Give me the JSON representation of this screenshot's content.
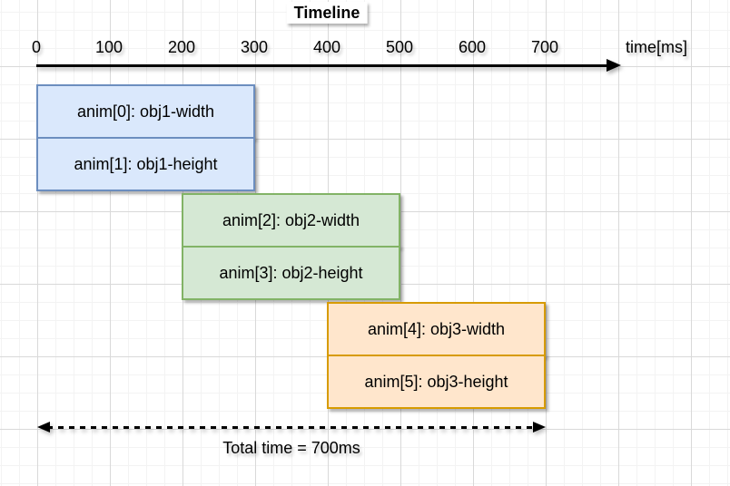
{
  "title": "Timeline",
  "axis": {
    "ticks": [
      "0",
      "100",
      "200",
      "300",
      "400",
      "500",
      "600",
      "700"
    ],
    "unit_label": "time[ms]"
  },
  "bars": [
    {
      "label": "anim[0]: obj1-width"
    },
    {
      "label": "anim[1]: obj1-height"
    },
    {
      "label": "anim[2]: obj2-width"
    },
    {
      "label": "anim[3]: obj2-height"
    },
    {
      "label": "anim[4]: obj3-width"
    },
    {
      "label": "anim[5]: obj3-height"
    }
  ],
  "total_label": "Total time = 700ms",
  "colors": {
    "obj1_fill": "#dae8fc",
    "obj1_stroke": "#6c8ebf",
    "obj2_fill": "#d5e8d4",
    "obj2_stroke": "#82b366",
    "obj3_fill": "#ffe6cc",
    "obj3_stroke": "#d79b00",
    "axis": "#000000",
    "grid_minor": "#f3f3f3",
    "grid_major": "#d9d9d9"
  },
  "chart_data": {
    "type": "bar",
    "title": "Timeline",
    "xlabel": "time[ms]",
    "x_ticks": [
      0,
      100,
      200,
      300,
      400,
      500,
      600,
      700
    ],
    "xlim": [
      0,
      800
    ],
    "grid": true,
    "bars": [
      {
        "label": "anim[0]: obj1-width",
        "start_ms": 0,
        "end_ms": 300,
        "group": "obj1",
        "color": "#dae8fc"
      },
      {
        "label": "anim[1]: obj1-height",
        "start_ms": 0,
        "end_ms": 300,
        "group": "obj1",
        "color": "#dae8fc"
      },
      {
        "label": "anim[2]: obj2-width",
        "start_ms": 200,
        "end_ms": 500,
        "group": "obj2",
        "color": "#d5e8d4"
      },
      {
        "label": "anim[3]: obj2-height",
        "start_ms": 200,
        "end_ms": 500,
        "group": "obj2",
        "color": "#d5e8d4"
      },
      {
        "label": "anim[4]: obj3-width",
        "start_ms": 400,
        "end_ms": 700,
        "group": "obj3",
        "color": "#ffe6cc"
      },
      {
        "label": "anim[5]: obj3-height",
        "start_ms": 400,
        "end_ms": 700,
        "group": "obj3",
        "color": "#ffe6cc"
      }
    ],
    "total_ms": 700
  }
}
